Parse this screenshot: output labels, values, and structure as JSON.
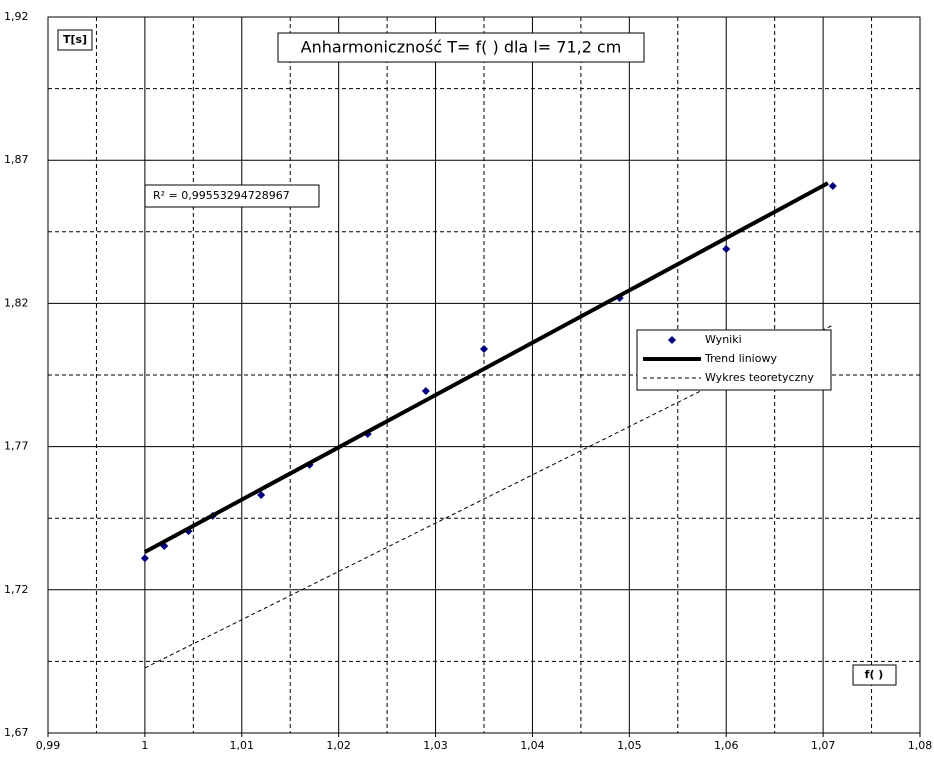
{
  "chart_data": {
    "type": "scatter",
    "title": "Anharmoniczność T= f(    ) dla l= 71,2 cm",
    "y_label": "T[s]",
    "x_label": "f(     )",
    "annotation": "R² = 0,99553294728967",
    "xlim": [
      0.99,
      1.08
    ],
    "xticks": [
      {
        "value": 0.99,
        "label": "0,99"
      },
      1,
      {
        "value": 1.01,
        "label": "1,01"
      },
      {
        "value": 1.02,
        "label": "1,02"
      },
      {
        "value": 1.03,
        "label": "1,03"
      },
      {
        "value": 1.04,
        "label": "1,04"
      },
      {
        "value": 1.05,
        "label": "1,05"
      },
      {
        "value": 1.06,
        "label": "1,06"
      },
      {
        "value": 1.07,
        "label": "1,07"
      },
      {
        "value": 1.08,
        "label": "1,08"
      }
    ],
    "minor_xticks": [
      0.995,
      1.005,
      1.015,
      1.025,
      1.035,
      1.045,
      1.055,
      1.065,
      1.075
    ],
    "ylim": [
      1.67,
      1.92
    ],
    "yticks": [
      {
        "value": 1.67,
        "label": "1,67"
      },
      {
        "value": 1.72,
        "label": "1,72"
      },
      {
        "value": 1.77,
        "label": "1,77"
      },
      {
        "value": 1.82,
        "label": "1,82"
      },
      {
        "value": 1.87,
        "label": "1,87"
      },
      {
        "value": 1.92,
        "label": "1,92"
      }
    ],
    "minor_yticks": [
      1.695,
      1.745,
      1.795,
      1.845,
      1.895
    ],
    "grid": true,
    "series": [
      {
        "name": "Wyniki",
        "mode": "markers",
        "color": "#000080",
        "x": [
          1.0,
          1.002,
          1.0045,
          1.007,
          1.012,
          1.017,
          1.023,
          1.029,
          1.035,
          1.049,
          1.06,
          1.071
        ],
        "values": [
          1.731,
          1.7353,
          1.7405,
          1.7458,
          1.7531,
          1.7636,
          1.7744,
          1.7894,
          1.8041,
          1.8219,
          1.839,
          1.861
        ]
      },
      {
        "name": "Trend liniowy",
        "mode": "line",
        "color": "#000000",
        "x": [
          1.0,
          1.0705
        ],
        "values": [
          1.7332,
          1.862
        ]
      },
      {
        "name": "Wykres teoretyczny",
        "mode": "dashed",
        "color": "#000000",
        "x": [
          1.0,
          1.071
        ],
        "values": [
          1.6927,
          1.8124
        ]
      }
    ]
  }
}
